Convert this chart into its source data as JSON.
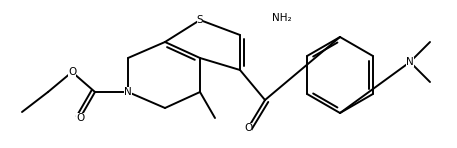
{
  "bg_color": "#ffffff",
  "figsize": [
    4.57,
    1.48
  ],
  "dpi": 100,
  "line_color": "#000000",
  "line_width": 1.4,
  "font_size": 7.5,
  "xlim": [
    0,
    4.57
  ],
  "ylim": [
    0,
    1.48
  ]
}
